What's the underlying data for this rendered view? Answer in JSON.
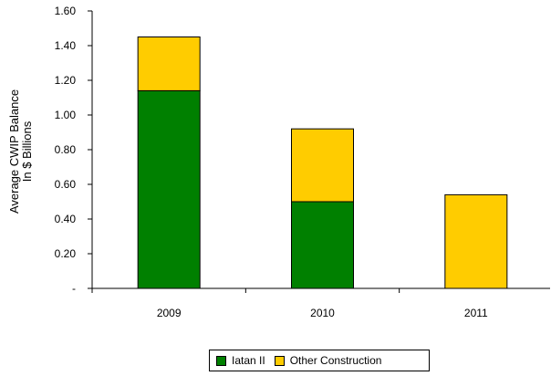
{
  "chart_data": {
    "type": "bar",
    "stacked": true,
    "categories": [
      "2009",
      "2010",
      "2011"
    ],
    "series": [
      {
        "name": "Iatan II",
        "color": "#008000",
        "values": [
          1.14,
          0.5,
          0.0
        ]
      },
      {
        "name": "Other Construction",
        "color": "#FFCC00",
        "values": [
          0.31,
          0.42,
          0.54
        ]
      }
    ],
    "ylabel_line1": "Average CWIP Balance",
    "ylabel_line2": "In $ Billions",
    "ylim": [
      0,
      1.6
    ],
    "yticks": [
      {
        "value": 0,
        "label": "-"
      },
      {
        "value": 0.2,
        "label": "0.20"
      },
      {
        "value": 0.4,
        "label": "0.40"
      },
      {
        "value": 0.6,
        "label": "0.60"
      },
      {
        "value": 0.8,
        "label": "0.80"
      },
      {
        "value": 1.0,
        "label": "1.00"
      },
      {
        "value": 1.2,
        "label": "1.20"
      },
      {
        "value": 1.4,
        "label": "1.40"
      },
      {
        "value": 1.6,
        "label": "1.60"
      }
    ],
    "legend_position": "bottom",
    "grid": false
  }
}
